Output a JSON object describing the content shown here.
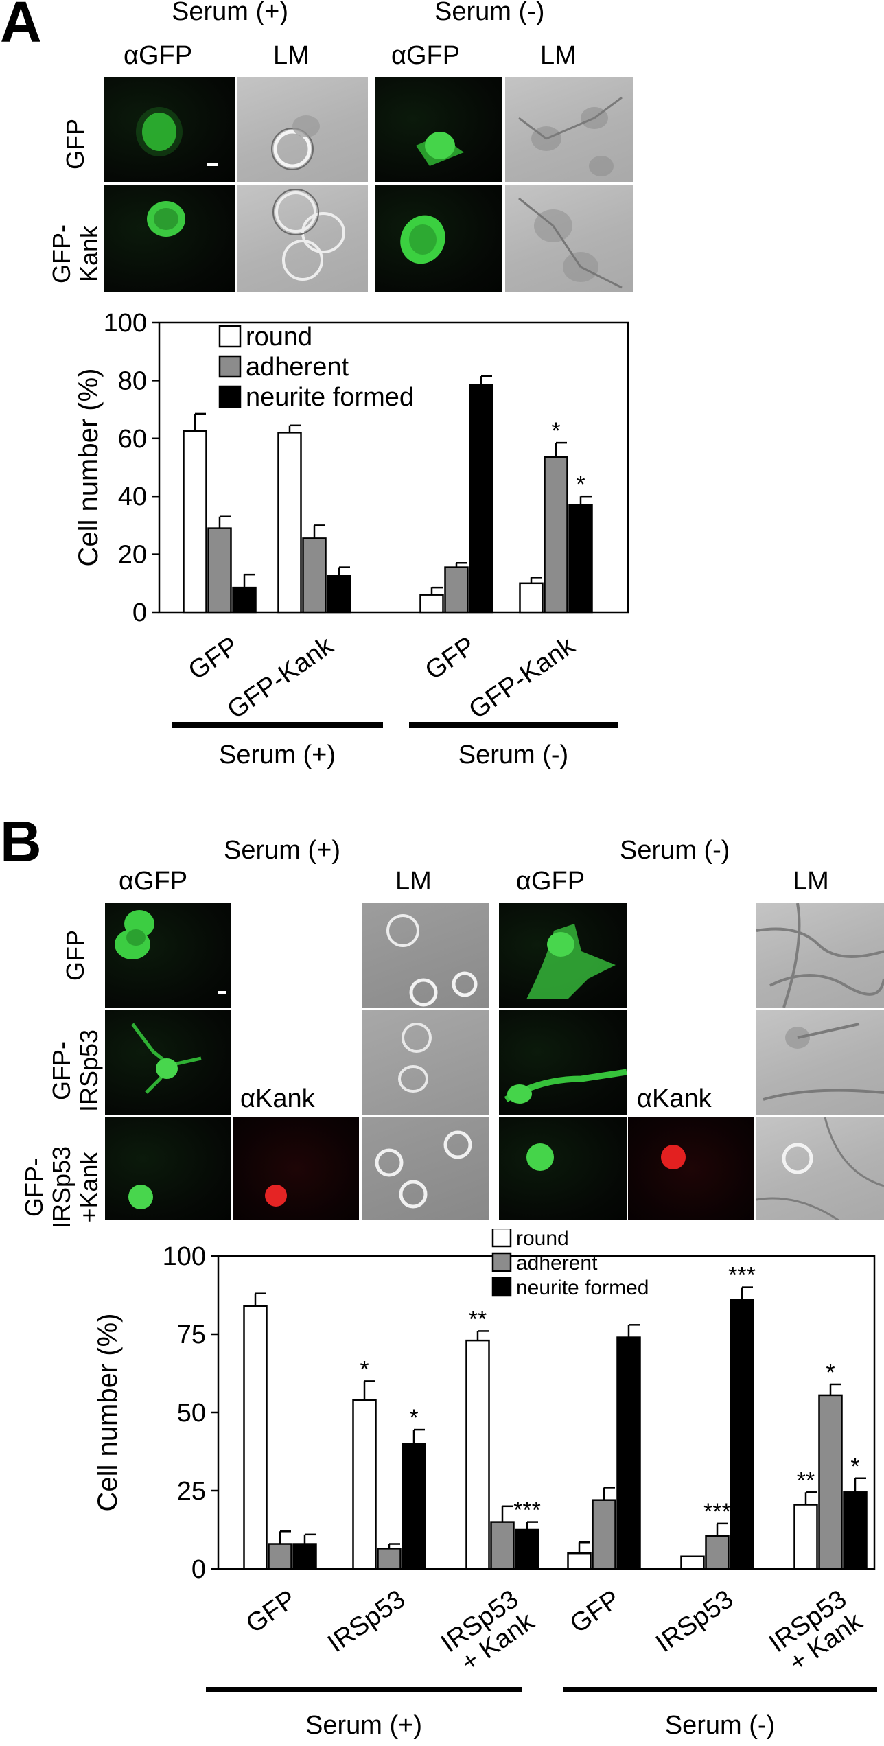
{
  "panel_a": {
    "letter": "A",
    "group_headers": [
      "Serum (+)",
      "Serum (-)"
    ],
    "column_labels": [
      "αGFP",
      "LM",
      "αGFP",
      "LM"
    ],
    "row_labels": [
      "GFP",
      "GFP-\nKank"
    ],
    "chart_data": {
      "type": "bar",
      "categories": [
        "GFP",
        "GFP-Kank",
        "GFP",
        "GFP-Kank"
      ],
      "groups": [
        "Serum (+)",
        "Serum (-)"
      ],
      "group_of_category": [
        0,
        0,
        1,
        1
      ],
      "series": [
        {
          "name": "round",
          "color": "#ffffff",
          "values": [
            62.5,
            62,
            6,
            10
          ],
          "errors": [
            6,
            2.5,
            2.5,
            2
          ]
        },
        {
          "name": "adherent",
          "color": "#8c8c8c",
          "values": [
            29,
            25.5,
            15.5,
            53.5
          ],
          "errors": [
            4,
            4.5,
            1.5,
            5
          ]
        },
        {
          "name": "neurite formed",
          "color": "#000000",
          "values": [
            8.5,
            12.5,
            78.5,
            37
          ],
          "errors": [
            4.5,
            3,
            3,
            3
          ]
        }
      ],
      "significance": [
        {
          "category": 3,
          "series": 1,
          "mark": "*"
        },
        {
          "category": 3,
          "series": 2,
          "mark": "*"
        }
      ],
      "ylabel": "Cell number  (%)",
      "ylim": [
        0,
        100
      ],
      "yticks": [
        0,
        20,
        40,
        60,
        80,
        100
      ],
      "legend_position": "top-left"
    }
  },
  "panel_b": {
    "letter": "B",
    "group_headers": [
      "Serum (+)",
      "Serum (-)"
    ],
    "column_labels": [
      "αGFP",
      "LM",
      "αGFP",
      "LM"
    ],
    "kank_labels": [
      "αKank",
      "αKank"
    ],
    "row_labels": [
      "GFP",
      "GFP-\nIRSp53",
      "GFP-\nIRSp53\n+Kank"
    ],
    "chart_data": {
      "type": "bar",
      "categories": [
        "GFP",
        "IRSp53",
        "IRSp53\n+ Kank",
        "GFP",
        "IRSp53",
        "IRSp53\n+ Kank"
      ],
      "groups": [
        "Serum (+)",
        "Serum (-)"
      ],
      "group_of_category": [
        0,
        0,
        0,
        1,
        1,
        1
      ],
      "series": [
        {
          "name": "round",
          "color": "#ffffff",
          "values": [
            84,
            54,
            73,
            5,
            4,
            20.5
          ],
          "errors": [
            4,
            6,
            3,
            3.5,
            0,
            4
          ]
        },
        {
          "name": "adherent",
          "color": "#8c8c8c",
          "values": [
            8,
            6.5,
            15,
            22,
            10.5,
            55.5
          ],
          "errors": [
            4,
            1.5,
            5,
            4,
            4,
            3.5
          ]
        },
        {
          "name": "neurite formed",
          "color": "#000000",
          "values": [
            8,
            40,
            12.5,
            74,
            86,
            24.5
          ],
          "errors": [
            3,
            4.5,
            2.5,
            4,
            4,
            4.5
          ]
        }
      ],
      "significance": [
        {
          "category": 1,
          "series": 0,
          "mark": "*"
        },
        {
          "category": 1,
          "series": 2,
          "mark": "*"
        },
        {
          "category": 2,
          "series": 0,
          "mark": "**"
        },
        {
          "category": 2,
          "series": 2,
          "mark": "***"
        },
        {
          "category": 4,
          "series": 1,
          "mark": "***"
        },
        {
          "category": 4,
          "series": 2,
          "mark": "***"
        },
        {
          "category": 5,
          "series": 0,
          "mark": "**"
        },
        {
          "category": 5,
          "series": 1,
          "mark": "*"
        },
        {
          "category": 5,
          "series": 2,
          "mark": "*"
        }
      ],
      "ylabel": "Cell number  (%)",
      "ylim": [
        0,
        100
      ],
      "yticks": [
        0,
        25,
        50,
        75,
        100
      ],
      "legend_position": "top-center"
    }
  }
}
